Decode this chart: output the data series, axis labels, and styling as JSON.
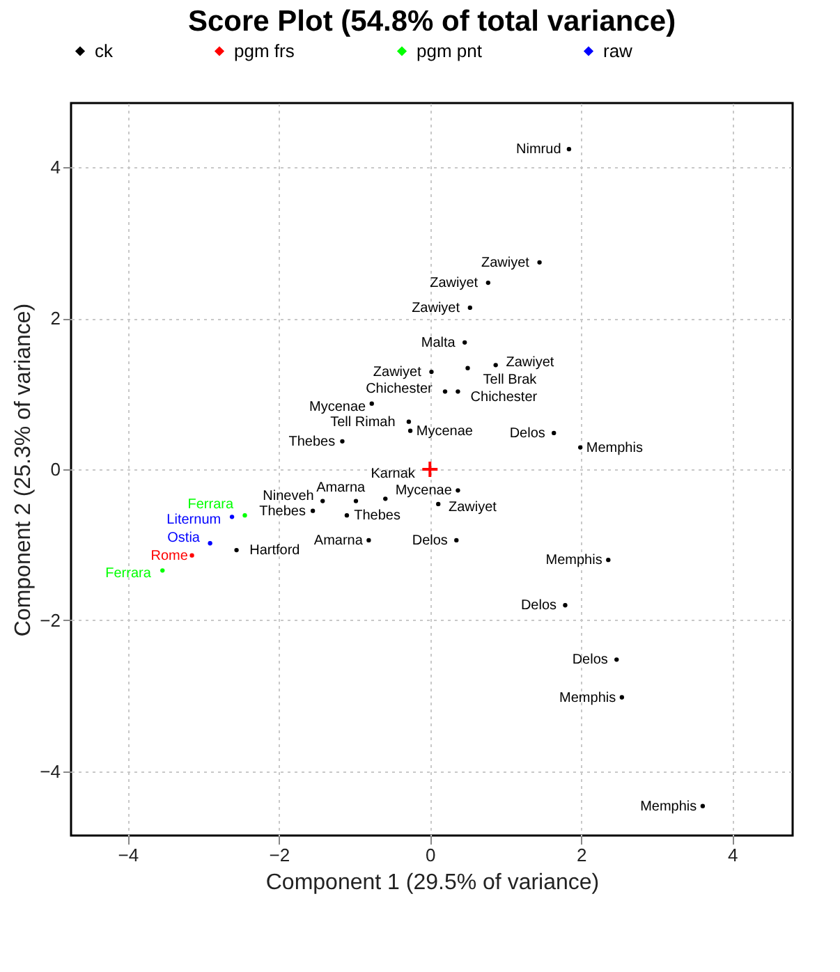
{
  "chart_data": {
    "type": "scatter",
    "title": "Score Plot (54.8% of total variance)",
    "xlabel": "Component 1 (29.5% of variance)",
    "ylabel": "Component 2 (25.3% of variance)",
    "xlim": [
      -4.75,
      4.8
    ],
    "ylim": [
      -4.85,
      4.85
    ],
    "xticks": [
      -4,
      -2,
      0,
      2,
      4
    ],
    "yticks": [
      -4,
      -2,
      0,
      2,
      4
    ],
    "grid": true,
    "legend": "top",
    "series": [
      {
        "name": "ck",
        "color": "#000000",
        "marker": "circle",
        "x": [
          1.84,
          1.45,
          0.77,
          0.53,
          0.46,
          0.02,
          0.5,
          0.87,
          0.2,
          0.37,
          -0.77,
          -0.28,
          -0.26,
          -1.16,
          1.64,
          1.99,
          0.37,
          0.11,
          0.35,
          -0.81,
          -1.1,
          -1.55,
          -1.42,
          -0.98,
          -0.59,
          -2.56,
          2.36,
          1.79,
          2.47,
          2.54,
          3.61
        ],
        "values": [
          4.24,
          2.74,
          2.47,
          2.14,
          1.68,
          1.29,
          1.34,
          1.38,
          1.03,
          1.03,
          0.87,
          0.63,
          0.51,
          0.37,
          0.48,
          0.29,
          -0.28,
          -0.46,
          -0.94,
          -0.94,
          -0.61,
          -0.55,
          -0.42,
          -0.42,
          -0.39,
          -1.07,
          -1.2,
          -1.8,
          -2.52,
          -3.02,
          -4.46
        ],
        "value_labels": [
          "Nimrud",
          "Zawiyet",
          "Zawiyet",
          "Zawiyet",
          "Malta",
          "Zawiyet",
          "Tell Brak",
          "Zawiyet",
          "Chichester",
          "Chichester",
          "Mycenae",
          "Tell Rimah",
          "Mycenae",
          "Thebes",
          "Delos",
          "Memphis",
          "Mycenae",
          "Zawiyet",
          "Delos",
          "Amarna",
          "Thebes",
          "Thebes",
          "Nineveh",
          "Amarna",
          "Karnak",
          "Hartford",
          "Memphis",
          "Delos",
          "Delos",
          "Memphis",
          "Memphis"
        ]
      },
      {
        "name": "pgm frs",
        "color": "#ff0000",
        "marker": "circle",
        "x": [
          -3.15
        ],
        "values": [
          -1.14
        ],
        "value_labels": [
          "Rome"
        ]
      },
      {
        "name": "pgm pnt",
        "color": "#00ff00",
        "marker": "circle",
        "x": [
          -2.45,
          -3.54
        ],
        "values": [
          -0.61,
          -1.34
        ],
        "value_labels": [
          "Ferrara",
          "Ferrara"
        ]
      },
      {
        "name": "raw",
        "color": "#0000ff",
        "marker": "circle",
        "x": [
          -2.62,
          -2.91
        ],
        "values": [
          -0.63,
          -0.98
        ],
        "value_labels": [
          "Liternum",
          "Ostia"
        ]
      },
      {
        "color": "#ff0000",
        "marker": "cross",
        "x": [
          0
        ],
        "values": [
          0
        ]
      }
    ]
  }
}
